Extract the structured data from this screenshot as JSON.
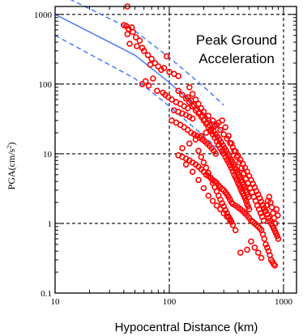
{
  "chart_data": {
    "type": "scatter",
    "title_lines": [
      "Peak Ground",
      "Acceleration"
    ],
    "xlabel": "Hypocentral Distance  (km)",
    "ylabel": "PGA(cm/s",
    "ylabel_sup": "2",
    "ylabel_close": ")",
    "x_scale": "log",
    "y_scale": "log",
    "xlim": [
      10,
      1300
    ],
    "ylim": [
      0.1,
      1300
    ],
    "x_ticks": [
      10,
      100,
      1000
    ],
    "x_tick_labels": [
      "10",
      "100",
      "1000"
    ],
    "y_ticks": [
      0.1,
      1,
      10,
      100,
      1000
    ],
    "y_tick_labels": [
      "0.1",
      "1",
      "10",
      "100",
      "1000"
    ],
    "grid": "dashed at decades",
    "series": [
      {
        "kind": "markers",
        "color": "#ff0000",
        "marker": "open-circle",
        "points": [
          [
            43,
            1300
          ],
          [
            40,
            700
          ],
          [
            44,
            620
          ],
          [
            47,
            650
          ],
          [
            42,
            680
          ],
          [
            43,
            520
          ],
          [
            48,
            560
          ],
          [
            51,
            470
          ],
          [
            55,
            420
          ],
          [
            45,
            380
          ],
          [
            52,
            350
          ],
          [
            58,
            330
          ],
          [
            60,
            300
          ],
          [
            65,
            260
          ],
          [
            70,
            230
          ],
          [
            75,
            200
          ],
          [
            68,
            190
          ],
          [
            80,
            180
          ],
          [
            90,
            170
          ],
          [
            95,
            250
          ],
          [
            85,
            160
          ],
          [
            100,
            150
          ],
          [
            110,
            140
          ],
          [
            120,
            130
          ],
          [
            72,
            120
          ],
          [
            62,
            110
          ],
          [
            58,
            100
          ],
          [
            66,
            95
          ],
          [
            78,
            80
          ],
          [
            88,
            75
          ],
          [
            92,
            70
          ],
          [
            98,
            65
          ],
          [
            105,
            60
          ],
          [
            115,
            55
          ],
          [
            125,
            52
          ],
          [
            135,
            48
          ],
          [
            145,
            45
          ],
          [
            110,
            42
          ],
          [
            120,
            40
          ],
          [
            130,
            38
          ],
          [
            140,
            36
          ],
          [
            150,
            34
          ],
          [
            160,
            32
          ],
          [
            105,
            30
          ],
          [
            115,
            28
          ],
          [
            125,
            26
          ],
          [
            135,
            24
          ],
          [
            145,
            22
          ],
          [
            155,
            20
          ],
          [
            165,
            19
          ],
          [
            175,
            18
          ],
          [
            185,
            17
          ],
          [
            195,
            16
          ],
          [
            205,
            15
          ],
          [
            215,
            14
          ],
          [
            225,
            13
          ],
          [
            235,
            12
          ],
          [
            245,
            11
          ],
          [
            255,
            10
          ],
          [
            120,
            9.5
          ],
          [
            130,
            9
          ],
          [
            140,
            8.5
          ],
          [
            150,
            8
          ],
          [
            160,
            7.5
          ],
          [
            170,
            7
          ],
          [
            180,
            6.5
          ],
          [
            190,
            6
          ],
          [
            200,
            5.5
          ],
          [
            210,
            5
          ],
          [
            220,
            4.8
          ],
          [
            230,
            4.5
          ],
          [
            240,
            4.2
          ],
          [
            250,
            4
          ],
          [
            260,
            3.8
          ],
          [
            270,
            3.5
          ],
          [
            280,
            3.3
          ],
          [
            290,
            3.1
          ],
          [
            300,
            3
          ],
          [
            310,
            2.8
          ],
          [
            320,
            2.6
          ],
          [
            330,
            2.4
          ],
          [
            340,
            2.2
          ],
          [
            350,
            2
          ],
          [
            360,
            1.9
          ],
          [
            380,
            1.8
          ],
          [
            400,
            1.7
          ],
          [
            420,
            1.6
          ],
          [
            440,
            1.5
          ],
          [
            460,
            1.4
          ],
          [
            480,
            1.3
          ],
          [
            500,
            1.2
          ],
          [
            520,
            1.1
          ],
          [
            540,
            1.05
          ],
          [
            560,
            1
          ],
          [
            580,
            0.95
          ],
          [
            600,
            0.9
          ],
          [
            620,
            0.85
          ],
          [
            640,
            0.8
          ],
          [
            660,
            0.7
          ],
          [
            680,
            0.6
          ],
          [
            700,
            0.5
          ],
          [
            720,
            0.45
          ],
          [
            740,
            0.4
          ],
          [
            760,
            0.35
          ],
          [
            780,
            0.3
          ],
          [
            800,
            0.28
          ],
          [
            820,
            0.26
          ],
          [
            840,
            0.25
          ],
          [
            520,
            0.55
          ],
          [
            560,
            0.45
          ],
          [
            600,
            0.38
          ],
          [
            640,
            0.32
          ],
          [
            480,
            0.42
          ],
          [
            420,
            0.38
          ],
          [
            380,
            0.8
          ],
          [
            360,
            0.95
          ],
          [
            340,
            1.1
          ],
          [
            320,
            1.25
          ],
          [
            300,
            1.4
          ],
          [
            280,
            1.6
          ],
          [
            260,
            1.8
          ],
          [
            240,
            2.1
          ],
          [
            220,
            2.5
          ],
          [
            200,
            3.2
          ],
          [
            180,
            4.2
          ],
          [
            160,
            5.5
          ],
          [
            140,
            7
          ],
          [
            130,
            12
          ],
          [
            150,
            14
          ],
          [
            170,
            16
          ],
          [
            190,
            18
          ],
          [
            210,
            20
          ],
          [
            230,
            22
          ],
          [
            250,
            25
          ],
          [
            270,
            28
          ],
          [
            290,
            30
          ],
          [
            310,
            24
          ],
          [
            330,
            18
          ],
          [
            350,
            14
          ],
          [
            370,
            11
          ],
          [
            390,
            9
          ],
          [
            410,
            7.5
          ],
          [
            430,
            6.2
          ],
          [
            450,
            5.2
          ],
          [
            470,
            4.4
          ],
          [
            490,
            3.8
          ],
          [
            510,
            3.2
          ],
          [
            530,
            2.8
          ],
          [
            550,
            2.4
          ],
          [
            570,
            2.1
          ],
          [
            590,
            1.8
          ],
          [
            610,
            1.6
          ],
          [
            630,
            1.4
          ],
          [
            650,
            1.25
          ],
          [
            670,
            1.1
          ],
          [
            690,
            1.5
          ],
          [
            710,
            1.8
          ],
          [
            730,
            2.1
          ],
          [
            750,
            2.4
          ],
          [
            770,
            2
          ],
          [
            790,
            1.7
          ],
          [
            810,
            1.4
          ],
          [
            830,
            1.2
          ],
          [
            850,
            1
          ],
          [
            870,
            1.6
          ],
          [
            890,
            1.3
          ],
          [
            120,
            80
          ],
          [
            130,
            70
          ],
          [
            140,
            62
          ],
          [
            150,
            55
          ],
          [
            160,
            48
          ],
          [
            170,
            42
          ],
          [
            180,
            38
          ],
          [
            190,
            34
          ],
          [
            200,
            30
          ],
          [
            210,
            27
          ],
          [
            220,
            24
          ],
          [
            230,
            21
          ],
          [
            240,
            19
          ],
          [
            250,
            17
          ],
          [
            260,
            15
          ],
          [
            270,
            13.5
          ],
          [
            280,
            12
          ],
          [
            290,
            11
          ],
          [
            300,
            10
          ],
          [
            310,
            9
          ],
          [
            320,
            8.2
          ],
          [
            330,
            7.5
          ],
          [
            340,
            6.8
          ],
          [
            350,
            6.2
          ],
          [
            360,
            5.6
          ],
          [
            370,
            5
          ],
          [
            380,
            4.6
          ],
          [
            390,
            4.2
          ],
          [
            400,
            3.8
          ],
          [
            410,
            3.5
          ],
          [
            420,
            3.2
          ],
          [
            430,
            2.9
          ],
          [
            440,
            2.7
          ],
          [
            450,
            2.5
          ],
          [
            460,
            2.3
          ],
          [
            470,
            2.1
          ],
          [
            480,
            1.9
          ],
          [
            490,
            1.75
          ],
          [
            500,
            1.6
          ],
          [
            150,
            90
          ],
          [
            160,
            72
          ],
          [
            170,
            60
          ],
          [
            180,
            52
          ],
          [
            190,
            45
          ],
          [
            200,
            40
          ],
          [
            145,
            65
          ],
          [
            155,
            58
          ],
          [
            165,
            50
          ],
          [
            175,
            44
          ],
          [
            185,
            39
          ],
          [
            195,
            35
          ],
          [
            205,
            31
          ],
          [
            215,
            28
          ],
          [
            225,
            25.5
          ],
          [
            235,
            23
          ],
          [
            245,
            21
          ],
          [
            255,
            19
          ],
          [
            265,
            17.5
          ],
          [
            275,
            16
          ],
          [
            285,
            14.5
          ],
          [
            295,
            13.2
          ],
          [
            305,
            12
          ],
          [
            315,
            11
          ],
          [
            325,
            10
          ],
          [
            335,
            9.2
          ],
          [
            345,
            8.4
          ],
          [
            355,
            7.7
          ],
          [
            365,
            7
          ],
          [
            375,
            6.4
          ],
          [
            385,
            5.9
          ],
          [
            395,
            5.4
          ],
          [
            405,
            5
          ],
          [
            415,
            4.6
          ],
          [
            425,
            4.2
          ],
          [
            435,
            3.9
          ],
          [
            445,
            3.6
          ],
          [
            455,
            3.3
          ],
          [
            465,
            3
          ],
          [
            475,
            2.8
          ],
          [
            485,
            2.6
          ],
          [
            495,
            2.4
          ],
          [
            180,
            11
          ],
          [
            190,
            9
          ],
          [
            200,
            7.5
          ],
          [
            210,
            6.3
          ],
          [
            220,
            5.3
          ],
          [
            230,
            4.5
          ],
          [
            240,
            3.8
          ],
          [
            250,
            3.3
          ],
          [
            260,
            2.9
          ],
          [
            270,
            2.5
          ],
          [
            280,
            2.2
          ],
          [
            290,
            1.95
          ],
          [
            300,
            1.75
          ],
          [
            310,
            1.55
          ],
          [
            320,
            1.4
          ],
          [
            330,
            1.25
          ],
          [
            340,
            1.15
          ],
          [
            350,
            1.05
          ],
          [
            220,
            35
          ],
          [
            240,
            30
          ],
          [
            260,
            26
          ],
          [
            280,
            22
          ],
          [
            300,
            19
          ],
          [
            320,
            16.5
          ],
          [
            340,
            14.3
          ],
          [
            360,
            12.4
          ],
          [
            380,
            10.8
          ],
          [
            400,
            9.4
          ],
          [
            420,
            8.2
          ],
          [
            440,
            7.2
          ],
          [
            460,
            6.3
          ],
          [
            480,
            5.5
          ],
          [
            500,
            4.8
          ],
          [
            520,
            4.2
          ],
          [
            540,
            3.7
          ],
          [
            560,
            3.3
          ],
          [
            580,
            2.9
          ],
          [
            600,
            2.6
          ],
          [
            620,
            2.3
          ],
          [
            640,
            2.05
          ],
          [
            660,
            1.85
          ],
          [
            680,
            1.65
          ],
          [
            700,
            1.5
          ],
          [
            720,
            1.35
          ],
          [
            740,
            1.2
          ],
          [
            760,
            1.1
          ],
          [
            780,
            1
          ],
          [
            800,
            0.92
          ],
          [
            820,
            0.85
          ],
          [
            840,
            0.78
          ],
          [
            860,
            0.72
          ],
          [
            880,
            0.66
          ],
          [
            900,
            0.6
          ]
        ]
      },
      {
        "kind": "line",
        "style": "solid",
        "color": "#3a74ff",
        "points": [
          [
            10,
            1000
          ],
          [
            50,
            260
          ],
          [
            100,
            105
          ],
          [
            200,
            38
          ],
          [
            300,
            20
          ]
        ]
      },
      {
        "kind": "line",
        "style": "dashed",
        "color": "#3a74ff",
        "points": [
          [
            10,
            2100
          ],
          [
            50,
            580
          ],
          [
            100,
            240
          ],
          [
            200,
            92
          ],
          [
            300,
            50
          ]
        ]
      },
      {
        "kind": "line",
        "style": "dashed",
        "color": "#3a74ff",
        "points": [
          [
            10,
            500
          ],
          [
            50,
            120
          ],
          [
            100,
            48
          ],
          [
            200,
            18
          ],
          [
            300,
            10
          ]
        ]
      }
    ]
  }
}
